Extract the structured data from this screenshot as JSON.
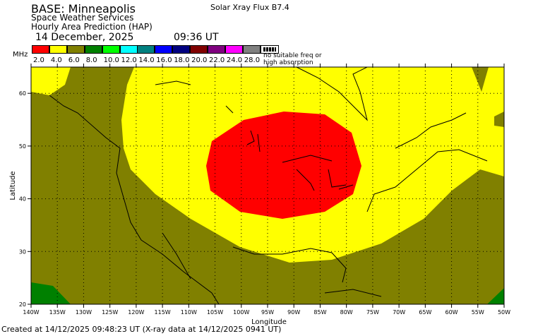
{
  "header": {
    "base": "BASE: Minneapolis",
    "org": "Space Weather Services",
    "product": "Hourly Area Prediction (HAP)",
    "date": "14 December, 2025",
    "time": "09:36 UT",
    "xray": "Solar Xray Flux B7.4"
  },
  "legend": {
    "unit": "MHz",
    "items": [
      {
        "label": "2.0",
        "color": "#ff0000"
      },
      {
        "label": "4.0",
        "color": "#ffff00"
      },
      {
        "label": "6.0",
        "color": "#808000"
      },
      {
        "label": "8.0",
        "color": "#008000"
      },
      {
        "label": "10.0",
        "color": "#00ff00"
      },
      {
        "label": "12.0",
        "color": "#00ffff"
      },
      {
        "label": "14.0",
        "color": "#008080"
      },
      {
        "label": "16.0",
        "color": "#0000ff"
      },
      {
        "label": "18.0",
        "color": "#000080"
      },
      {
        "label": "20.0",
        "color": "#800000"
      },
      {
        "label": "22.0",
        "color": "#800080"
      },
      {
        "label": "24.0",
        "color": "#ff00ff"
      },
      {
        "label": "28.0",
        "color": "#808080"
      }
    ],
    "none_label_1": "no suitable freq or",
    "none_label_2": "high absorption"
  },
  "axes": {
    "xlabel": "Longitude",
    "ylabel": "Latitude",
    "lon_ticks": [
      "140W",
      "135W",
      "130W",
      "125W",
      "120W",
      "115W",
      "110W",
      "105W",
      "100W",
      "95W",
      "90W",
      "85W",
      "80W",
      "75W",
      "70W",
      "65W",
      "60W",
      "55W",
      "50W"
    ],
    "lat_ticks": [
      "20",
      "30",
      "40",
      "50",
      "60"
    ]
  },
  "footer": "Created at 14/12/2025 09:48:23 UT (X-ray data at 14/12/2025 0941 UT)"
}
